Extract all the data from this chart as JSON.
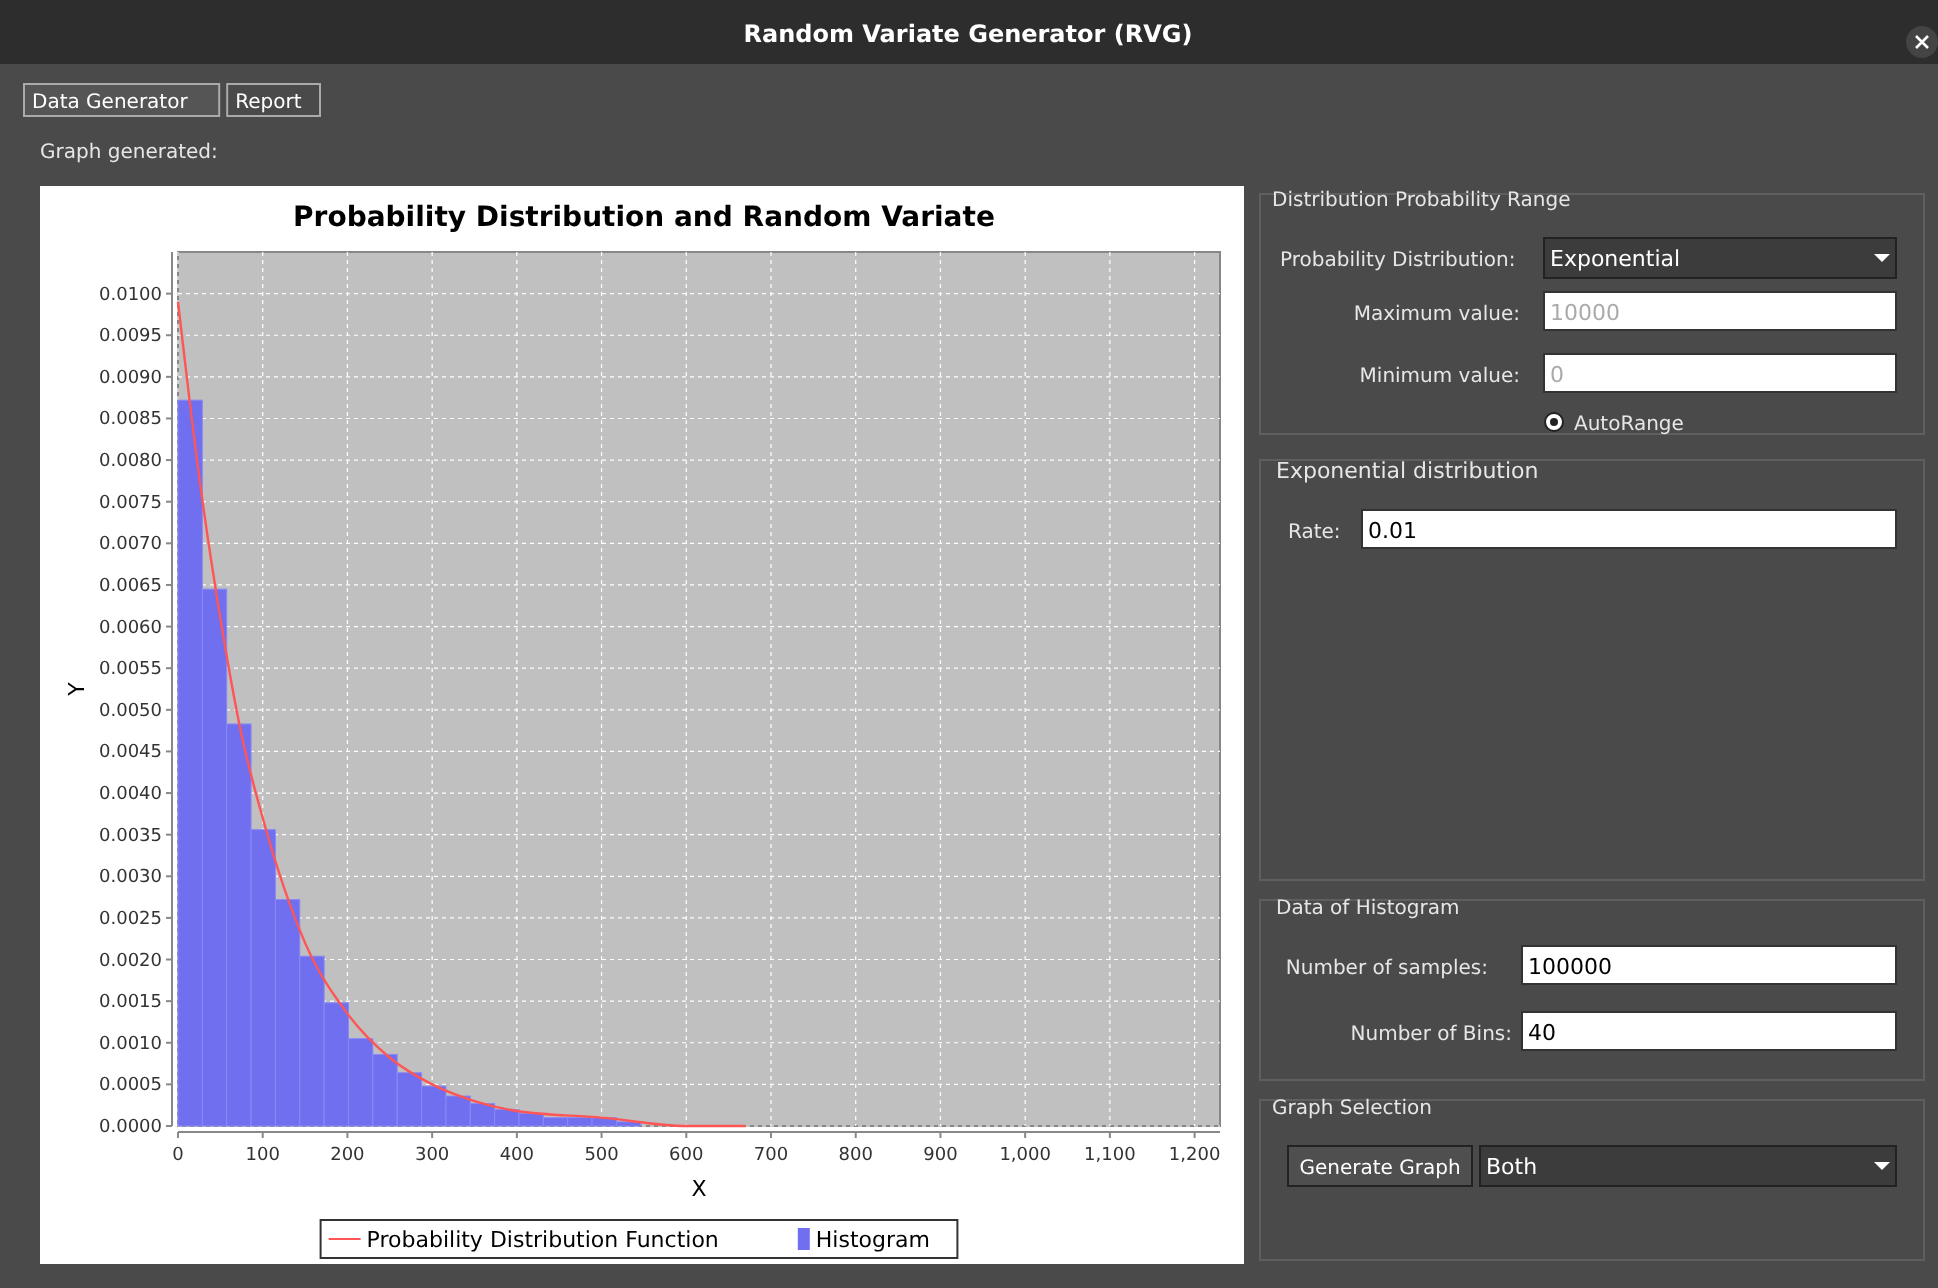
{
  "chart_data": [
    {
      "type": "histogram",
      "title": "Probability Distribution and Random Variate",
      "xlabel": "X",
      "ylabel": "Y",
      "bins": [
        0,
        28.75,
        57.5,
        86.25,
        115,
        143.75,
        172.5,
        201.25,
        230,
        258.75,
        287.5,
        316.25,
        345,
        373.75,
        402.5,
        431.25,
        460,
        488.75,
        517.5,
        546.25,
        575,
        603.75,
        632.5,
        661.25,
        690,
        718.75,
        747.5,
        776.25,
        805,
        833.75,
        862.5,
        891.25,
        920,
        948.75,
        977.5,
        1006.25,
        1035,
        1063.75,
        1092.5,
        1121.25,
        1150
      ],
      "series": [
        {
          "name": "Probability Distribution Function",
          "type": "line",
          "color": "#ff5555",
          "x": [
            0,
            25,
            50,
            75,
            100,
            150,
            200,
            250,
            300,
            350,
            400,
            500,
            600,
            670
          ],
          "values": [
            0.0099,
            0.0078,
            0.0061,
            0.0047,
            0.0037,
            0.0022,
            0.00135,
            0.00082,
            0.0005,
            0.0003,
            0.00018,
            0.0001,
            0,
            0
          ]
        },
        {
          "name": "Histogram",
          "type": "histogram",
          "color": "#6f6ff0",
          "values": [
            0.00872,
            0.00645,
            0.00483,
            0.00356,
            0.00272,
            0.00204,
            0.00148,
            0.00105,
            0.00086,
            0.00064,
            0.00048,
            0.00036,
            0.00027,
            0.0002,
            0.00015,
            0.0001,
            0.0001,
            0.0001,
            5e-05,
            0,
            0,
            0,
            0,
            0,
            0,
            0,
            0,
            0,
            0,
            0,
            0,
            0,
            0,
            0,
            0,
            0,
            0,
            0,
            0,
            0
          ]
        }
      ],
      "xlim": [
        0,
        1230
      ],
      "ylim": [
        0,
        0.0105
      ],
      "xticks": [
        0,
        100,
        200,
        300,
        400,
        500,
        600,
        700,
        800,
        900,
        {
          "value": 1000,
          "label": "1,000"
        },
        {
          "value": 1100,
          "label": "1,100"
        },
        {
          "value": 1200,
          "label": "1,200"
        }
      ],
      "yticks": [
        {
          "value": 0,
          "label": "0.0000"
        },
        {
          "value": 0.0005,
          "label": "0.0005"
        },
        {
          "value": 0.001,
          "label": "0.0010"
        },
        {
          "value": 0.0015,
          "label": "0.0015"
        },
        {
          "value": 0.002,
          "label": "0.0020"
        },
        {
          "value": 0.0025,
          "label": "0.0025"
        },
        {
          "value": 0.003,
          "label": "0.0030"
        },
        {
          "value": 0.0035,
          "label": "0.0035"
        },
        {
          "value": 0.004,
          "label": "0.0040"
        },
        {
          "value": 0.0045,
          "label": "0.0045"
        },
        {
          "value": 0.005,
          "label": "0.0050"
        },
        {
          "value": 0.0055,
          "label": "0.0055"
        },
        {
          "value": 0.006,
          "label": "0.0060"
        },
        {
          "value": 0.0065,
          "label": "0.0065"
        },
        {
          "value": 0.007,
          "label": "0.0070"
        },
        {
          "value": 0.0075,
          "label": "0.0075"
        },
        {
          "value": 0.008,
          "label": "0.0080"
        },
        {
          "value": 0.0085,
          "label": "0.0085"
        },
        {
          "value": 0.009,
          "label": "0.0090"
        },
        {
          "value": 0.0095,
          "label": "0.0095"
        },
        {
          "value": 0.01,
          "label": "0.0100"
        }
      ],
      "grid": true,
      "legend": "bottom"
    },
    {
      "type": "other",
      "title": "Random Variate Generator (RVG)",
      "annotations": [
        "Data Generator",
        "Report",
        "Graph generated:",
        "Distribution Probability Range",
        "Probability Distribution:",
        "Exponential",
        "Maximum value:",
        "10000",
        "Minimum value:",
        "0",
        "AutoRange",
        "Exponential distribution",
        "Rate:",
        "0.01",
        "Data of Histogram",
        "Number of samples:",
        "100000",
        "Number of Bins:",
        "40",
        "Graph Selection",
        "Generate Graph",
        "Both"
      ]
    }
  ]
}
